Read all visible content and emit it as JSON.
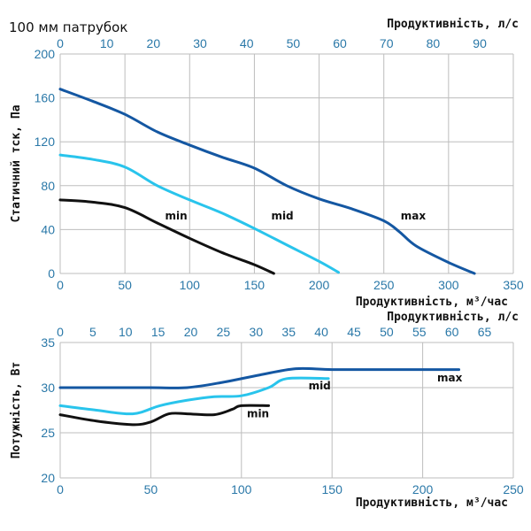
{
  "title": "100 мм патрубок",
  "colors": {
    "min": "#111111",
    "mid": "#29c4ec",
    "max": "#1457a2",
    "tick": "#2a78a8",
    "grid": "#bdbdbd"
  },
  "chart_data": [
    {
      "type": "line",
      "x_axis_bottom": {
        "label": "Продуктивність, м³/час",
        "range": [
          0,
          350
        ],
        "ticks": [
          0,
          50,
          100,
          150,
          200,
          250,
          300,
          350
        ]
      },
      "x_axis_top": {
        "label": "Продуктивність, л/с",
        "range": [
          0,
          97.2
        ],
        "ticks": [
          0,
          10,
          20,
          30,
          40,
          50,
          60,
          70,
          80,
          90
        ]
      },
      "y_axis": {
        "label": "Статичний тск, Па",
        "range": [
          0,
          200
        ],
        "ticks": [
          0,
          40,
          80,
          120,
          160,
          200
        ]
      },
      "grid": true,
      "series": [
        {
          "name": "max",
          "color_key": "max",
          "label_at": [
            263,
            49
          ],
          "x": [
            0,
            25,
            50,
            75,
            100,
            125,
            150,
            175,
            200,
            225,
            250,
            262,
            275,
            300,
            320
          ],
          "y": [
            168,
            157,
            145,
            129,
            117,
            106,
            96,
            80,
            68,
            59,
            48,
            38,
            25,
            10,
            0
          ]
        },
        {
          "name": "mid",
          "color_key": "mid",
          "label_at": [
            163,
            49
          ],
          "x": [
            0,
            25,
            50,
            75,
            100,
            125,
            150,
            175,
            200,
            215
          ],
          "y": [
            108,
            104,
            97,
            80,
            67,
            55,
            41,
            26,
            11,
            1
          ]
        },
        {
          "name": "min",
          "color_key": "min",
          "label_at": [
            81,
            49
          ],
          "x": [
            0,
            25,
            50,
            75,
            100,
            125,
            150,
            165
          ],
          "y": [
            67,
            65,
            60,
            46,
            32,
            19,
            8,
            0
          ]
        }
      ]
    },
    {
      "type": "line",
      "x_axis_bottom": {
        "label": "Продуктивність, м³/час",
        "range": [
          0,
          250
        ],
        "ticks": [
          0,
          50,
          100,
          150,
          200,
          250
        ]
      },
      "x_axis_top": {
        "label": "Продуктивність, л/с",
        "range": [
          0,
          69.4
        ],
        "ticks": [
          0,
          5,
          10,
          15,
          20,
          25,
          30,
          35,
          40,
          45,
          50,
          55,
          60,
          65
        ]
      },
      "y_axis": {
        "label": "Потужність, Вт",
        "range": [
          20,
          35
        ],
        "ticks": [
          20,
          25,
          30,
          35
        ]
      },
      "grid": true,
      "series": [
        {
          "name": "max",
          "color_key": "max",
          "label_at": [
            208,
            30.7
          ],
          "x": [
            0,
            25,
            50,
            70,
            90,
            110,
            130,
            150,
            180,
            220
          ],
          "y": [
            30,
            30,
            30,
            30,
            30.6,
            31.4,
            32.1,
            32,
            32,
            32
          ]
        },
        {
          "name": "mid",
          "color_key": "mid",
          "label_at": [
            137,
            29.8
          ],
          "x": [
            0,
            20,
            40,
            55,
            70,
            85,
            100,
            115,
            125,
            148
          ],
          "y": [
            28,
            27.5,
            27.1,
            28,
            28.6,
            29,
            29.1,
            30,
            31,
            31
          ]
        },
        {
          "name": "min",
          "color_key": "min",
          "label_at": [
            103,
            26.7
          ],
          "x": [
            0,
            20,
            40,
            50,
            60,
            70,
            85,
            95,
            100,
            115
          ],
          "y": [
            27,
            26.3,
            25.9,
            26.2,
            27.1,
            27.1,
            27,
            27.6,
            28,
            28
          ]
        }
      ]
    }
  ]
}
